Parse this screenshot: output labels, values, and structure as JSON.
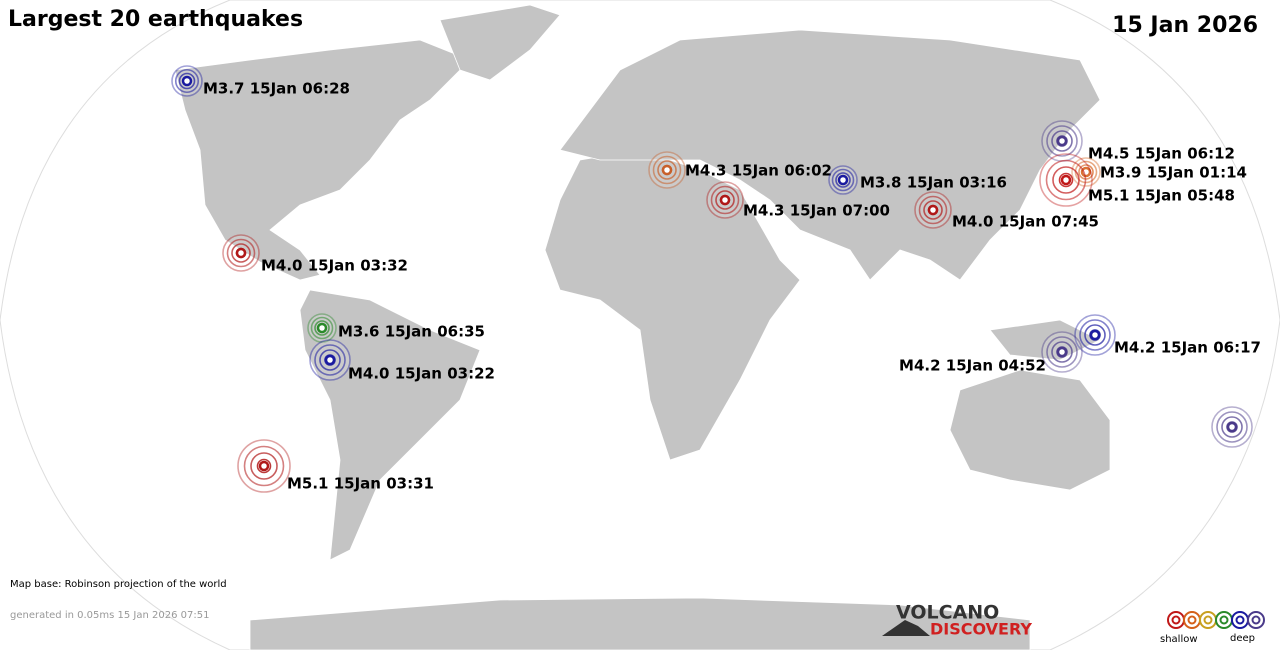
{
  "header": {
    "title": "Largest 20 earthquakes",
    "date": "15 Jan 2026"
  },
  "quakes": [
    {
      "label": "M3.7 15Jan 06:28",
      "color": "#1a1aa0"
    },
    {
      "label": "M4.3 15Jan 06:02",
      "color": "#c8602a"
    },
    {
      "label": "M4.3 15Jan 07:00",
      "color": "#b01818"
    },
    {
      "label": "M3.8 15Jan 03:16",
      "color": "#1a1aa0"
    },
    {
      "label": "M4.0 15Jan 07:45",
      "color": "#b01818"
    },
    {
      "label": "M4.5 15Jan 06:12",
      "color": "#4a3a8a"
    },
    {
      "label": "M3.9 15Jan 01:14",
      "color": "#d4601a"
    },
    {
      "label": "M5.1 15Jan 05:48",
      "color": "#c01818"
    },
    {
      "label": "M4.0 15Jan 03:32",
      "color": "#b01818"
    },
    {
      "label": "M3.6 15Jan 06:35",
      "color": "#2a8a2a"
    },
    {
      "label": "M4.0 15Jan 03:22",
      "color": "#1a1aa0"
    },
    {
      "label": "M5.1 15Jan 03:31",
      "color": "#b01818"
    },
    {
      "label": "M4.2 15Jan 06:17",
      "color": "#1a1aa0"
    },
    {
      "label": "M4.2 15Jan 04:52",
      "color": "#4a3a8a"
    },
    {
      "color": "#4a3a8a"
    }
  ],
  "footer": {
    "map_base": "Map base: Robinson projection of the world",
    "generated": "generated in 0.05ms 15 Jan 2026 07:51"
  },
  "logo": {
    "line1": "VOLCANO",
    "line2": "DISCOVERY"
  },
  "depth_legend": {
    "shallow": "shallow",
    "deep": "deep",
    "colors": [
      "#c01818",
      "#d4601a",
      "#c8a020",
      "#2a8a2a",
      "#1a1aa0",
      "#4a3a8a"
    ]
  }
}
